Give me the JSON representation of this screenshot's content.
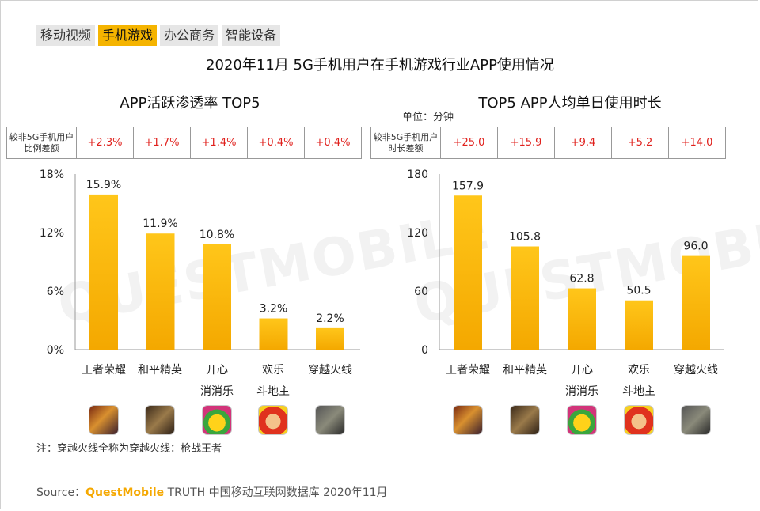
{
  "tabs": [
    {
      "label": "移动视频",
      "active": false
    },
    {
      "label": "手机游戏",
      "active": true
    },
    {
      "label": "办公商务",
      "active": false
    },
    {
      "label": "智能设备",
      "active": false
    }
  ],
  "main_title": "2020年11月 5G手机用户在手机游戏行业APP使用情况",
  "watermark": "QUESTMOBILE",
  "left": {
    "title": "APP活跃渗透率 TOP5",
    "compare_header": "较非5G手机用户比例差额",
    "compare_values": [
      "+2.3%",
      "+1.7%",
      "+1.4%",
      "+0.4%",
      "+0.4%"
    ]
  },
  "right": {
    "title": "TOP5 APP人均单日使用时长",
    "unit": "单位：分钟",
    "compare_header": "较非5G手机用户时长差额",
    "compare_values": [
      "+25.0",
      "+15.9",
      "+9.4",
      "+5.2",
      "+14.0"
    ]
  },
  "chart_data": [
    {
      "type": "bar",
      "title": "APP活跃渗透率 TOP5",
      "categories": [
        "王者荣耀",
        "和平精英",
        "开心消消乐",
        "欢乐斗地主",
        "穿越火线"
      ],
      "values": [
        15.9,
        11.9,
        10.8,
        3.2,
        2.2
      ],
      "value_labels": [
        "15.9%",
        "11.9%",
        "10.8%",
        "3.2%",
        "2.2%"
      ],
      "yticks": [
        "0%",
        "6%",
        "12%",
        "18%"
      ],
      "ylim": [
        0,
        18
      ],
      "bar_color": "#f5b400",
      "grid": false
    },
    {
      "type": "bar",
      "title": "TOP5 APP人均单日使用时长",
      "categories": [
        "王者荣耀",
        "和平精英",
        "开心消消乐",
        "欢乐斗地主",
        "穿越火线"
      ],
      "values": [
        157.9,
        105.8,
        62.8,
        50.5,
        96.0
      ],
      "value_labels": [
        "157.9",
        "105.8",
        "62.8",
        "50.5",
        "96.0"
      ],
      "yticks": [
        "0",
        "60",
        "120",
        "180"
      ],
      "ylim": [
        0,
        180
      ],
      "bar_color": "#f5b400",
      "grid": false
    }
  ],
  "app_labels": [
    [
      "王者荣耀"
    ],
    [
      "和平精英"
    ],
    [
      "开心",
      "消消乐"
    ],
    [
      "欢乐",
      "斗地主"
    ],
    [
      "穿越火线"
    ]
  ],
  "icons": [
    "wangzhe-icon",
    "heping-icon",
    "xiaoxiaole-icon",
    "doudizhu-icon",
    "chuanyue-icon"
  ],
  "note": "注：穿越火线全称为穿越火线：枪战王者",
  "source": {
    "prefix": "Source：",
    "brand": "QuestMobile",
    "rest": " TRUTH 中国移动互联网数据库 2020年11月"
  }
}
